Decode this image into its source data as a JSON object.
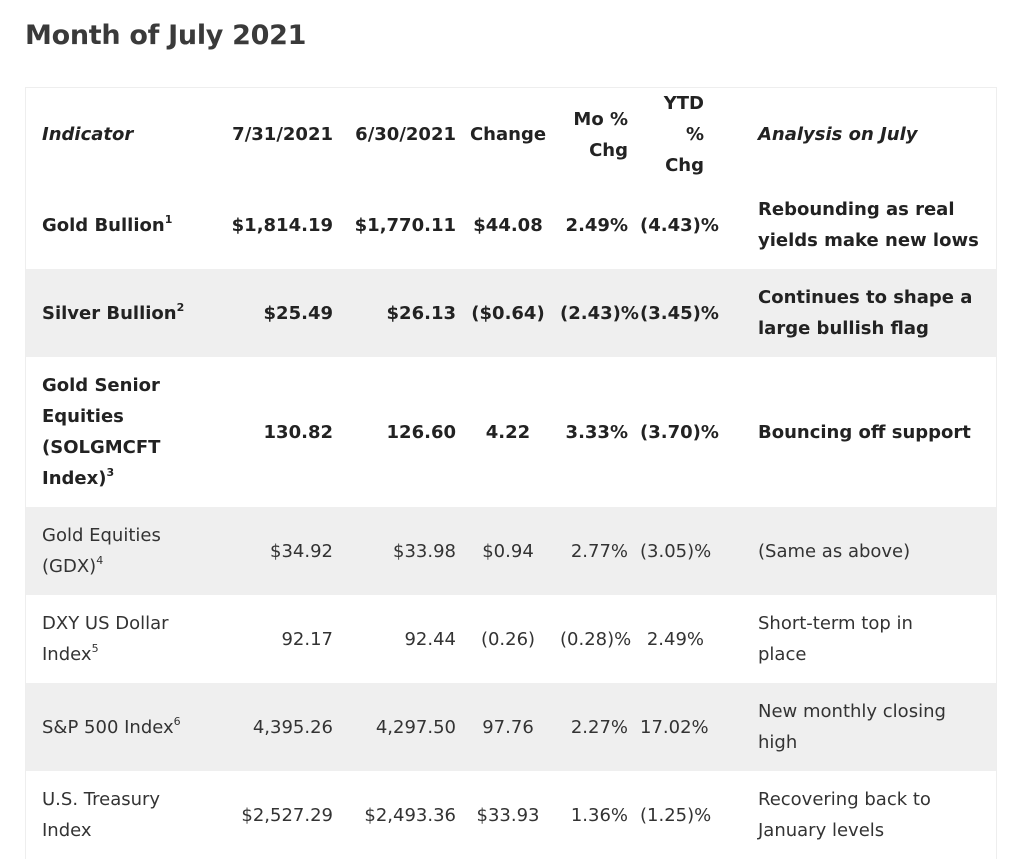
{
  "title": "Month of July 2021",
  "headers": {
    "indicator": "Indicator",
    "date1": "7/31/2021",
    "date2": "6/30/2021",
    "change": "Change",
    "mo_line1": "Mo %",
    "mo_line2": "Chg",
    "ytd_line1": "YTD %",
    "ytd_line2": "Chg",
    "analysis": "Analysis on July"
  },
  "rows": [
    {
      "indicator_a": "Gold Bullion",
      "indicator_b": "",
      "indicator_c": "",
      "indicator_d": "",
      "footnote": "1",
      "date1": "$1,814.19",
      "date2": "$1,770.11",
      "change": "$44.08",
      "mo_chg": "2.49%",
      "ytd_chg": "(4.43)%",
      "analysis_a": "Rebounding as real",
      "analysis_b": "yields make new lows"
    },
    {
      "indicator_a": "Silver Bullion",
      "indicator_b": "",
      "indicator_c": "",
      "indicator_d": "",
      "footnote": "2",
      "date1": "$25.49",
      "date2": "$26.13",
      "change": "($0.64)",
      "mo_chg": "(2.43)%",
      "ytd_chg": "(3.45)%",
      "analysis_a": "Continues to shape a",
      "analysis_b": "large bullish flag"
    },
    {
      "indicator_a": "Gold Senior",
      "indicator_b": "Equities",
      "indicator_c": "(SOLGMCFT",
      "indicator_d": "Index)",
      "footnote": "3",
      "date1": "130.82",
      "date2": "126.60",
      "change": "4.22",
      "mo_chg": "3.33%",
      "ytd_chg": "(3.70)%",
      "analysis_a": "Bouncing off support",
      "analysis_b": ""
    },
    {
      "indicator_a": "Gold Equities",
      "indicator_b": "(GDX)",
      "indicator_c": "",
      "indicator_d": "",
      "footnote": "4",
      "date1": "$34.92",
      "date2": "$33.98",
      "change": "$0.94",
      "mo_chg": "2.77%",
      "ytd_chg": "(3.05)%",
      "analysis_a": "(Same as above)",
      "analysis_b": ""
    },
    {
      "indicator_a": "DXY US Dollar",
      "indicator_b": "Index",
      "indicator_c": "",
      "indicator_d": "",
      "footnote": "5",
      "date1": "92.17",
      "date2": "92.44",
      "change": "(0.26)",
      "mo_chg": "(0.28)%",
      "ytd_chg": "2.49%",
      "analysis_a": "Short-term top in",
      "analysis_b": "place"
    },
    {
      "indicator_a": "S&P 500 Index",
      "indicator_b": "",
      "indicator_c": "",
      "indicator_d": "",
      "footnote": "6",
      "date1": "4,395.26",
      "date2": "4,297.50",
      "change": "97.76",
      "mo_chg": "2.27%",
      "ytd_chg": "17.02%",
      "analysis_a": "New monthly closing",
      "analysis_b": "high"
    },
    {
      "indicator_a": "U.S. Treasury",
      "indicator_b": "Index",
      "indicator_c": "",
      "indicator_d": "",
      "footnote": "",
      "date1": "$2,527.29",
      "date2": "$2,493.36",
      "change": "$33.93",
      "mo_chg": "1.36%",
      "ytd_chg": "(1.25)%",
      "analysis_a": "Recovering back to",
      "analysis_b": "January levels"
    }
  ]
}
